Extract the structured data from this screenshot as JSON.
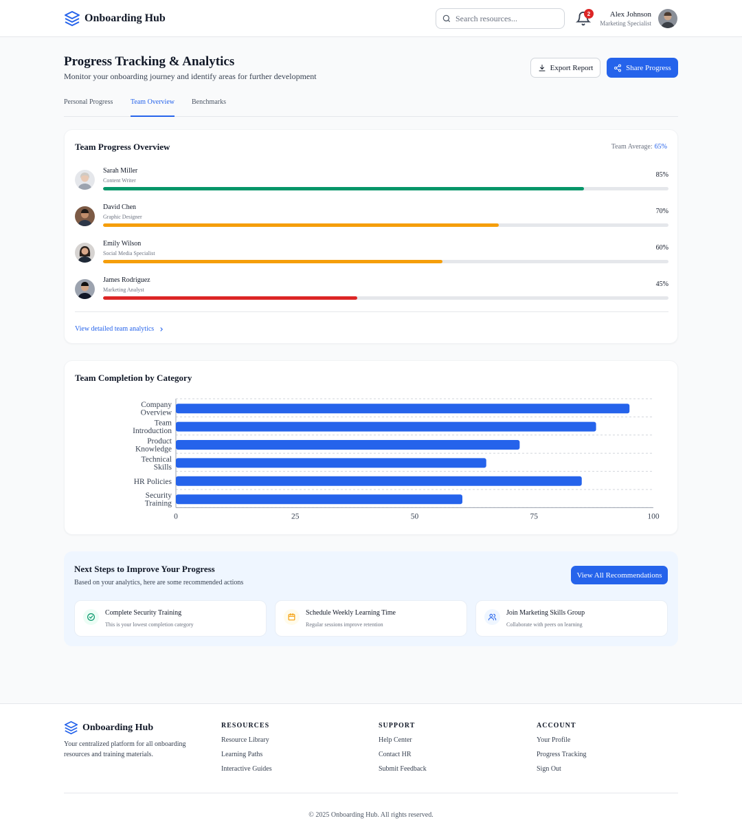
{
  "app": {
    "name": "Onboarding Hub"
  },
  "header": {
    "search_placeholder": "Search resources...",
    "notifications_count": "2",
    "user": {
      "name": "Alex Johnson",
      "role": "Marketing Specialist"
    }
  },
  "page": {
    "title": "Progress Tracking & Analytics",
    "subtitle": "Monitor your onboarding journey and identify areas for further development",
    "export_label": "Export Report",
    "share_label": "Share Progress"
  },
  "tabs": [
    {
      "label": "Personal Progress",
      "active": false
    },
    {
      "label": "Team Overview",
      "active": true
    },
    {
      "label": "Benchmarks",
      "active": false
    }
  ],
  "team": {
    "title": "Team Progress Overview",
    "average_label": "Team Average:",
    "average_value": "65%",
    "members": [
      {
        "name": "Sarah Miller",
        "role": "Content Writer",
        "percent_label": "85%",
        "progress": 85,
        "color": "#059669"
      },
      {
        "name": "David Chen",
        "role": "Graphic Designer",
        "percent_label": "70%",
        "progress": 70,
        "color": "#f59e0b"
      },
      {
        "name": "Emily Wilson",
        "role": "Social Media Specialist",
        "percent_label": "60%",
        "progress": 60,
        "color": "#f59e0b"
      },
      {
        "name": "James Rodriguez",
        "role": "Marketing Analyst",
        "percent_label": "45%",
        "progress": 45,
        "color": "#dc2626"
      }
    ],
    "link_label": "View detailed team analytics"
  },
  "chart_data": {
    "type": "bar",
    "orientation": "horizontal",
    "title": "Team Completion by Category",
    "categories": [
      [
        "Company",
        "Overview"
      ],
      [
        "Team",
        "Introduction"
      ],
      [
        "Product",
        "Knowledge"
      ],
      [
        "Technical",
        "Skills"
      ],
      [
        "HR Policies"
      ],
      [
        "Security",
        "Training"
      ]
    ],
    "values": [
      95,
      88,
      72,
      65,
      85,
      60
    ],
    "xlim": [
      0,
      100
    ],
    "xticks": [
      "0",
      "25",
      "50",
      "75",
      "100"
    ],
    "bar_color": "#2563eb",
    "grid": "dashed"
  },
  "next_steps": {
    "title": "Next Steps to Improve Your Progress",
    "subtitle": "Based on your analytics, here are some recommended actions",
    "button_label": "View All Recommendations",
    "items": [
      {
        "title": "Complete Security Training",
        "subtitle": "This is your lowest completion category",
        "icon": "check-circle-icon",
        "color": "#059669"
      },
      {
        "title": "Schedule Weekly Learning Time",
        "subtitle": "Regular sessions improve retention",
        "icon": "calendar-icon",
        "color": "#f59e0b"
      },
      {
        "title": "Join Marketing Skills Group",
        "subtitle": "Collaborate with peers on learning",
        "icon": "users-icon",
        "color": "#2563eb"
      }
    ]
  },
  "footer": {
    "description": "Your centralized platform for all onboarding resources and training materials.",
    "columns": [
      {
        "heading": "RESOURCES",
        "links": [
          "Resource Library",
          "Learning Paths",
          "Interactive Guides"
        ]
      },
      {
        "heading": "SUPPORT",
        "links": [
          "Help Center",
          "Contact HR",
          "Submit Feedback"
        ]
      },
      {
        "heading": "ACCOUNT",
        "links": [
          "Your Profile",
          "Progress Tracking",
          "Sign Out"
        ]
      }
    ],
    "copyright": "© 2025 Onboarding Hub. All rights reserved."
  }
}
